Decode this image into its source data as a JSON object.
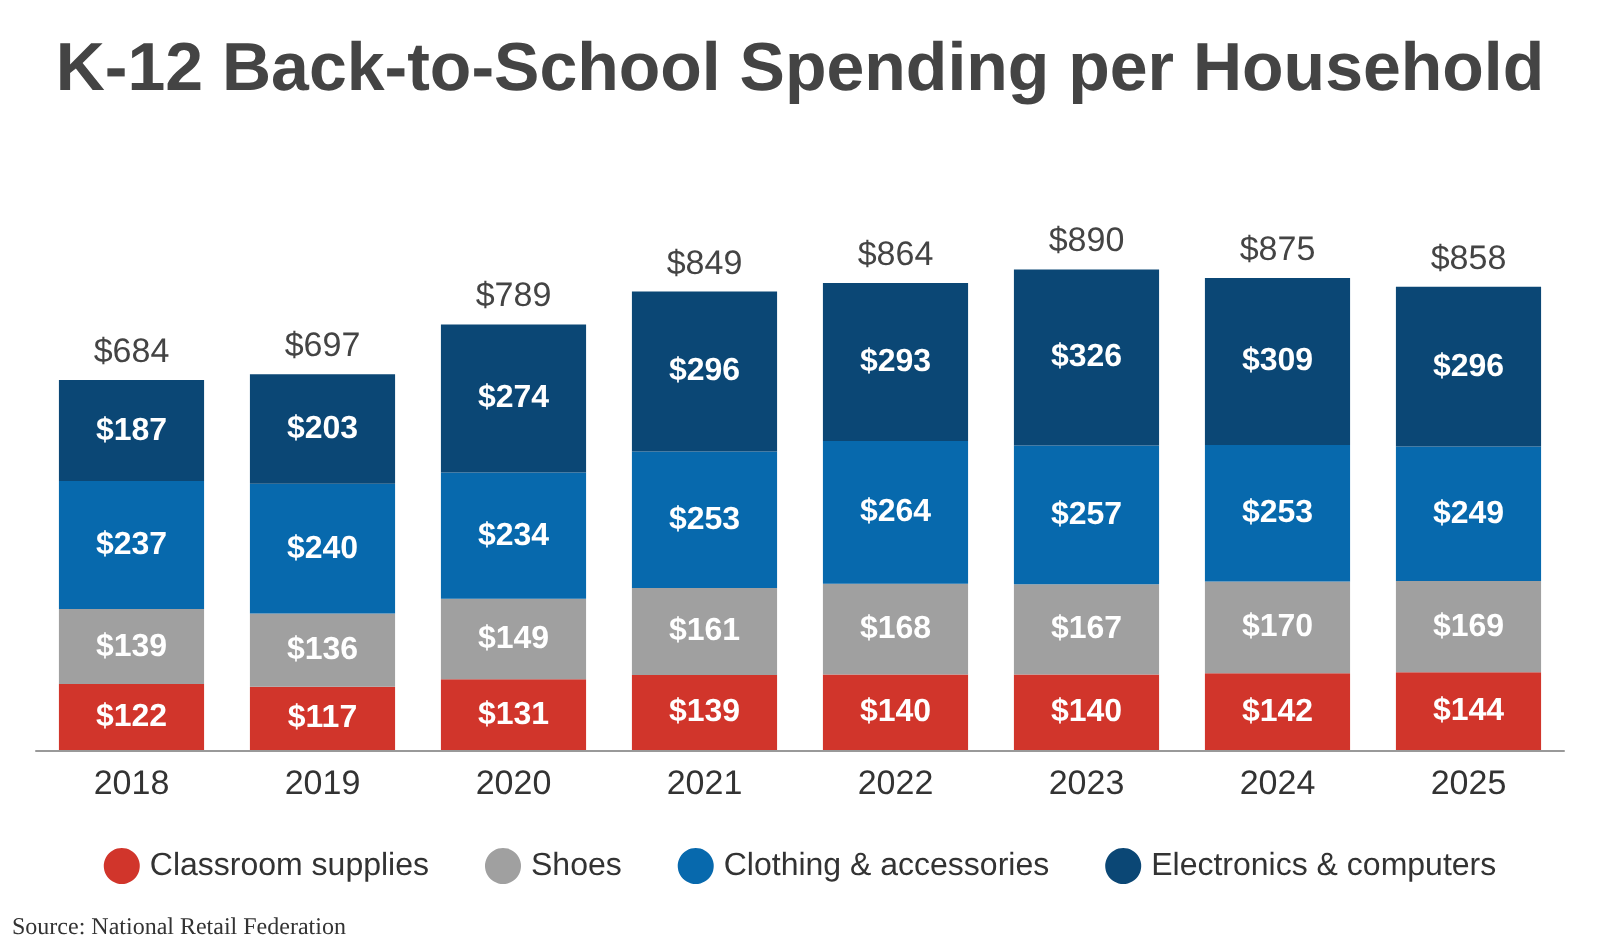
{
  "chart_data": {
    "type": "bar",
    "title": "K-12 Back-to-School Spending per Household",
    "categories": [
      "2018",
      "2019",
      "2020",
      "2021",
      "2022",
      "2023",
      "2024",
      "2025"
    ],
    "stacked": true,
    "series": [
      {
        "name": "Classroom supplies",
        "color": "#d1352b",
        "values": [
          122,
          117,
          131,
          139,
          140,
          140,
          142,
          144
        ],
        "value_labels": [
          "$122",
          "$117",
          "$131",
          "$139",
          "$140",
          "$140",
          "$142",
          "$144"
        ]
      },
      {
        "name": "Shoes",
        "color": "#a0a0a0",
        "values": [
          139,
          136,
          149,
          161,
          168,
          167,
          170,
          169
        ],
        "value_labels": [
          "$139",
          "$136",
          "$149",
          "$161",
          "$168",
          "$167",
          "$170",
          "$169"
        ]
      },
      {
        "name": "Clothing & accessories",
        "color": "#0769ad",
        "values": [
          237,
          240,
          234,
          253,
          264,
          257,
          253,
          249
        ],
        "value_labels": [
          "$237",
          "$240",
          "$234",
          "$253",
          "$264",
          "$257",
          "$253",
          "$249"
        ]
      },
      {
        "name": "Electronics & computers",
        "color": "#0b4775",
        "values": [
          187,
          203,
          274,
          296,
          293,
          326,
          309,
          296
        ],
        "value_labels": [
          "$187",
          "$203",
          "$274",
          "$296",
          "$293",
          "$326",
          "$309",
          "$296"
        ]
      }
    ],
    "totals": [
      "$684",
      "$697",
      "$789",
      "$849",
      "$864",
      "$890",
      "$875",
      "$858"
    ],
    "legend": "bottom",
    "annotations": [
      "Source: National Retail Federation"
    ]
  }
}
